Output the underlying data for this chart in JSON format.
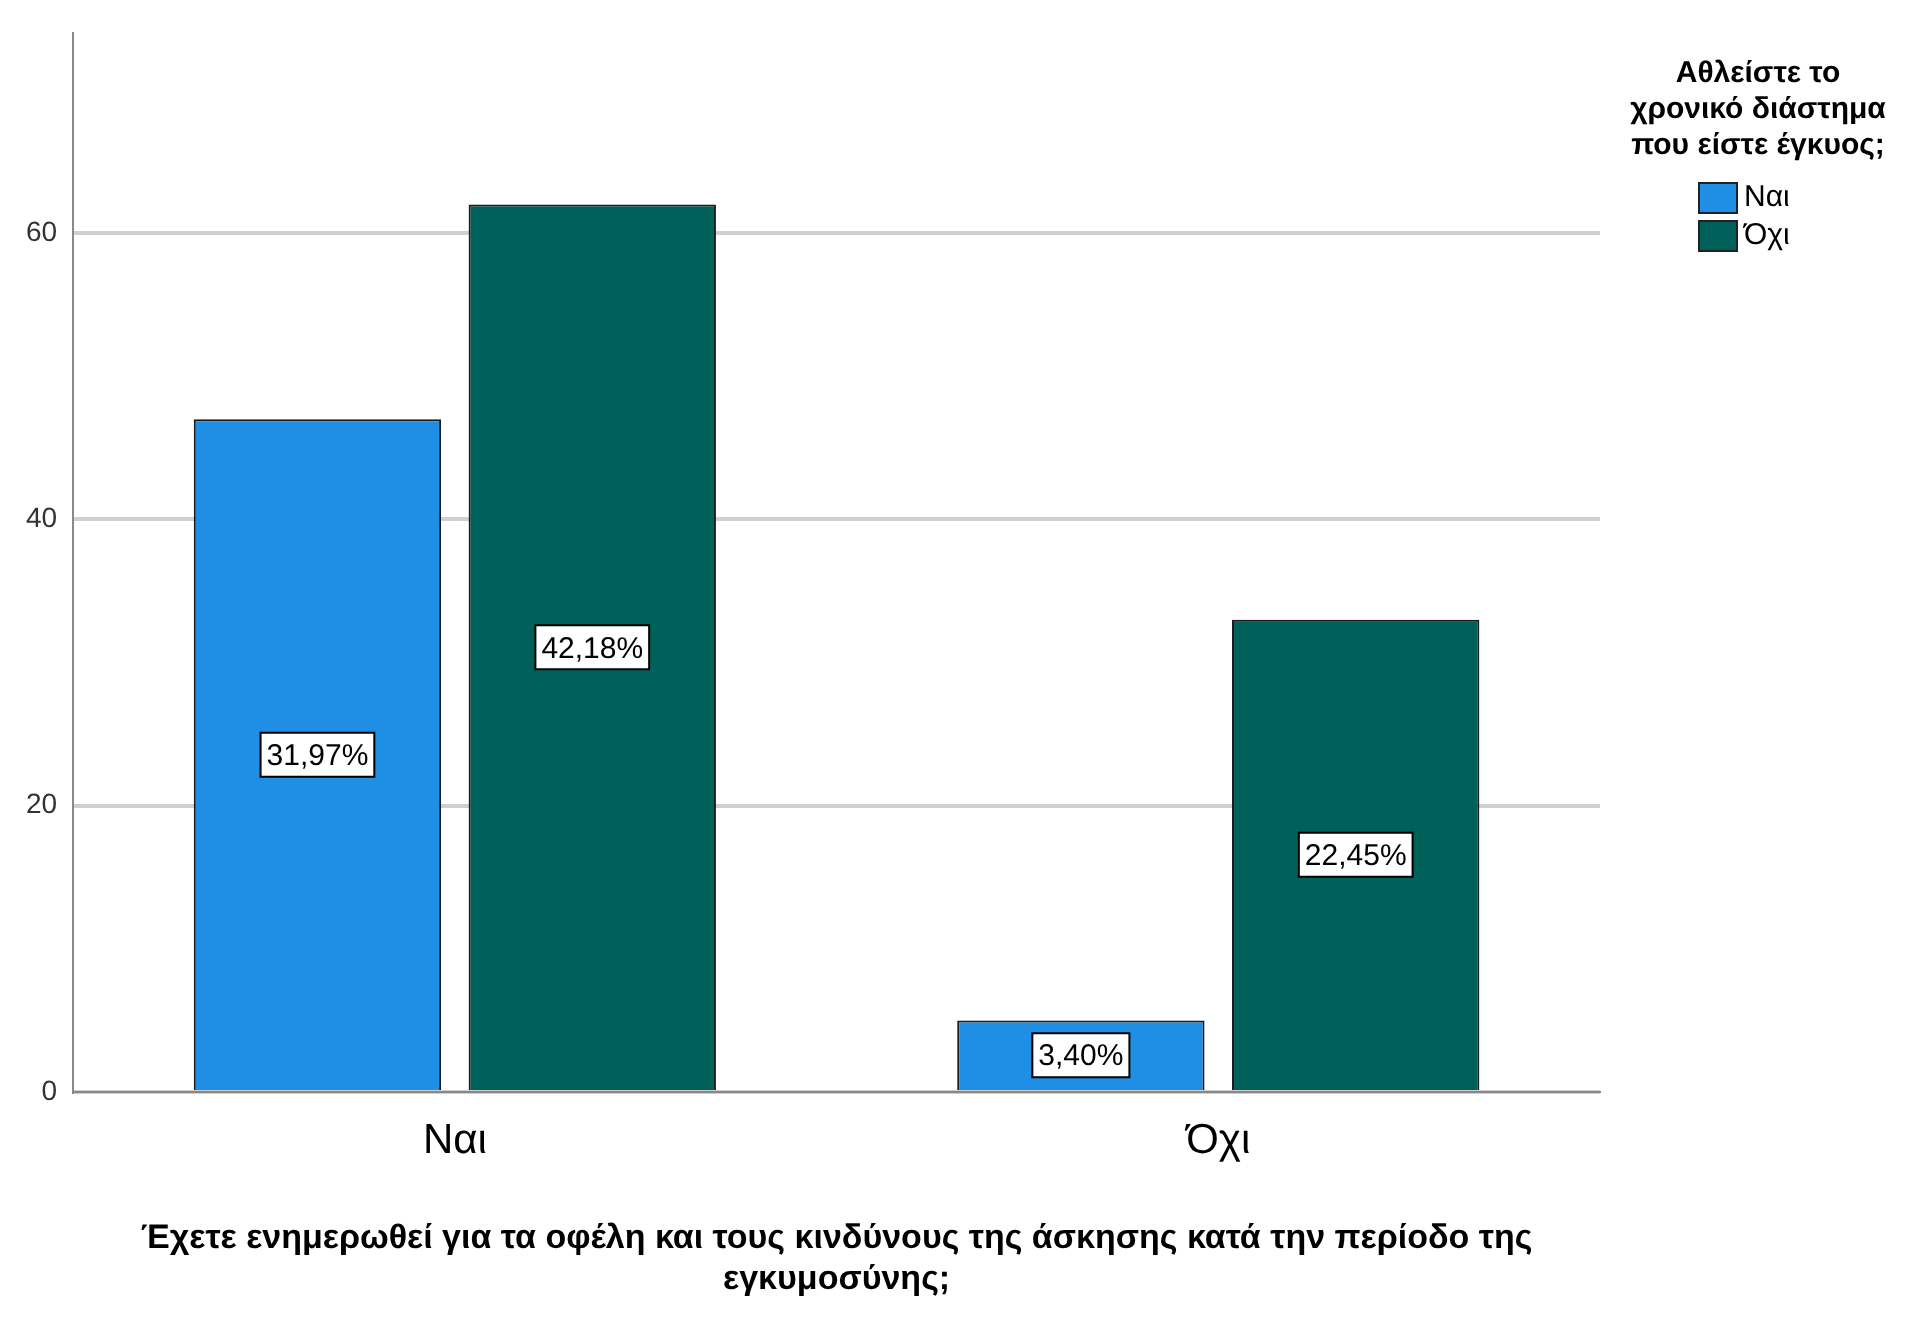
{
  "chart_data": {
    "type": "bar",
    "xlabel": "Έχετε ενημερωθεί για τα οφέλη και τους κινδύνους της άσκησης κατά την περίοδο της εγκυμοσύνης;",
    "legend_title": "Αθλείστε το χρονικό διάστημα που είστε έγκυος;",
    "categories": [
      "Ναι",
      "Όχι"
    ],
    "series": [
      {
        "name": "Ναι",
        "color": "#1f8fe6",
        "values": [
          47,
          5
        ]
      },
      {
        "name": "Όχι",
        "color": "#00605a",
        "values": [
          62,
          33
        ]
      }
    ],
    "annotations": [
      "31,97%",
      "3,40%",
      "42,18%",
      "22,45%"
    ],
    "ylim": [
      0,
      74
    ],
    "yticks": [
      0,
      20,
      40,
      60
    ],
    "grid": "y",
    "legend": "top right"
  }
}
